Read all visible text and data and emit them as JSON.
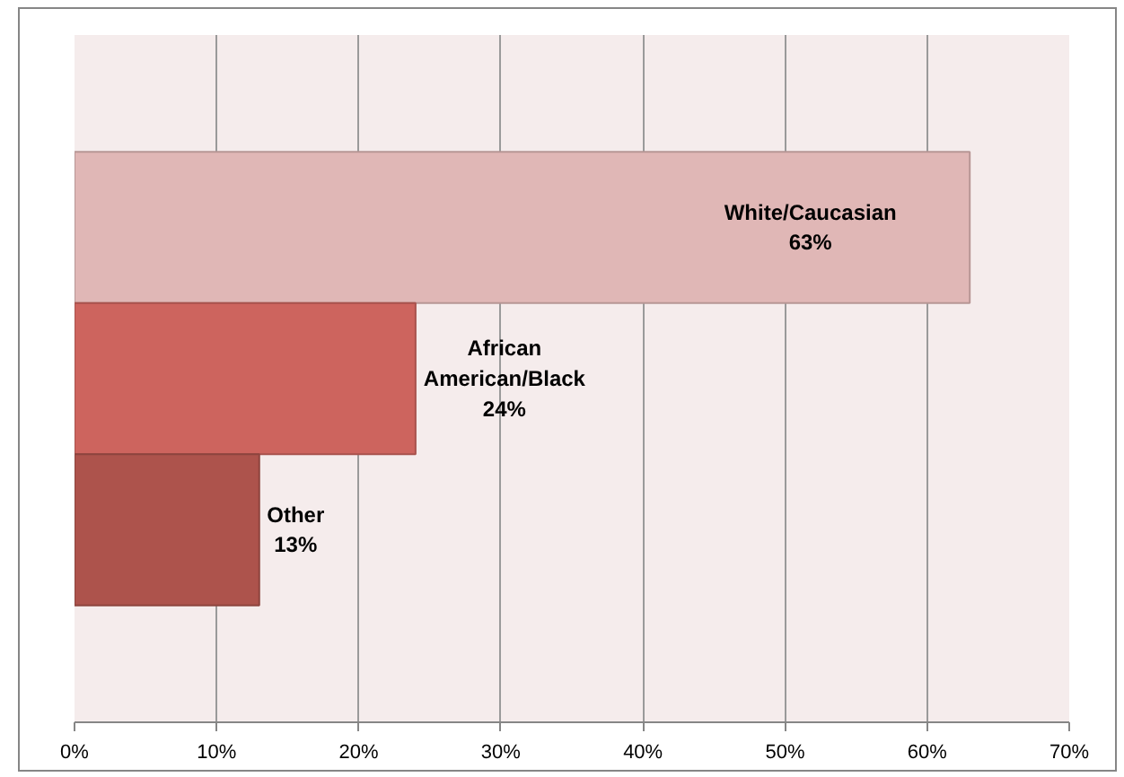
{
  "chart_data": {
    "type": "bar",
    "orientation": "horizontal",
    "categories": [
      null
    ],
    "series": [
      {
        "name": "White/Caucasian",
        "color": "#e0b7b6",
        "values": [
          63
        ],
        "value_labels": [
          "63%"
        ]
      },
      {
        "name": "African American/Black",
        "color": "#cd645e",
        "values": [
          24
        ],
        "value_labels": [
          "24%"
        ]
      },
      {
        "name": "Other",
        "color": "#ad534c",
        "values": [
          13
        ],
        "value_labels": [
          "13%"
        ]
      }
    ],
    "xlim": [
      0,
      70
    ],
    "xticks": [
      {
        "value": 0,
        "label": "0%"
      },
      {
        "value": 10,
        "label": "10%"
      },
      {
        "value": 20,
        "label": "20%"
      },
      {
        "value": 30,
        "label": "30%"
      },
      {
        "value": 40,
        "label": "40%"
      },
      {
        "value": 50,
        "label": "50%"
      },
      {
        "value": 60,
        "label": "60%"
      },
      {
        "value": 70,
        "label": "70%"
      }
    ],
    "grid": "x",
    "tick_labels": "x"
  }
}
